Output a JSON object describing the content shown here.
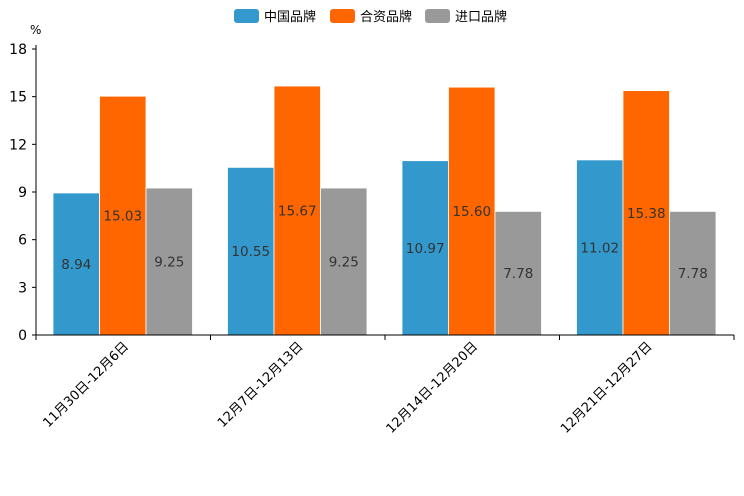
{
  "chart_data": {
    "type": "bar",
    "unit": "%",
    "ylim": [
      0,
      18
    ],
    "yticks": [
      0,
      3,
      6,
      9,
      12,
      15,
      18
    ],
    "grid": false,
    "legend_position": "top-center",
    "categories": [
      "11月30日-12月6日",
      "12月7日-12月13日",
      "12月14日-12月20日",
      "12月21日-12月27日"
    ],
    "series": [
      {
        "name": "中国品牌",
        "color": "#3399cc",
        "values": [
          8.94,
          10.55,
          10.97,
          11.02
        ],
        "labels": [
          "8.94",
          "10.55",
          "10.97",
          "11.02"
        ]
      },
      {
        "name": "合资品牌",
        "color": "#ff6600",
        "values": [
          15.03,
          15.67,
          15.6,
          15.38
        ],
        "labels": [
          "15.03",
          "15.67",
          "15.60",
          "15.38"
        ]
      },
      {
        "name": "进口品牌",
        "color": "#999999",
        "values": [
          9.25,
          9.25,
          7.78,
          7.78
        ],
        "labels": [
          "9.25",
          "9.25",
          "7.78",
          "7.78"
        ]
      }
    ]
  }
}
